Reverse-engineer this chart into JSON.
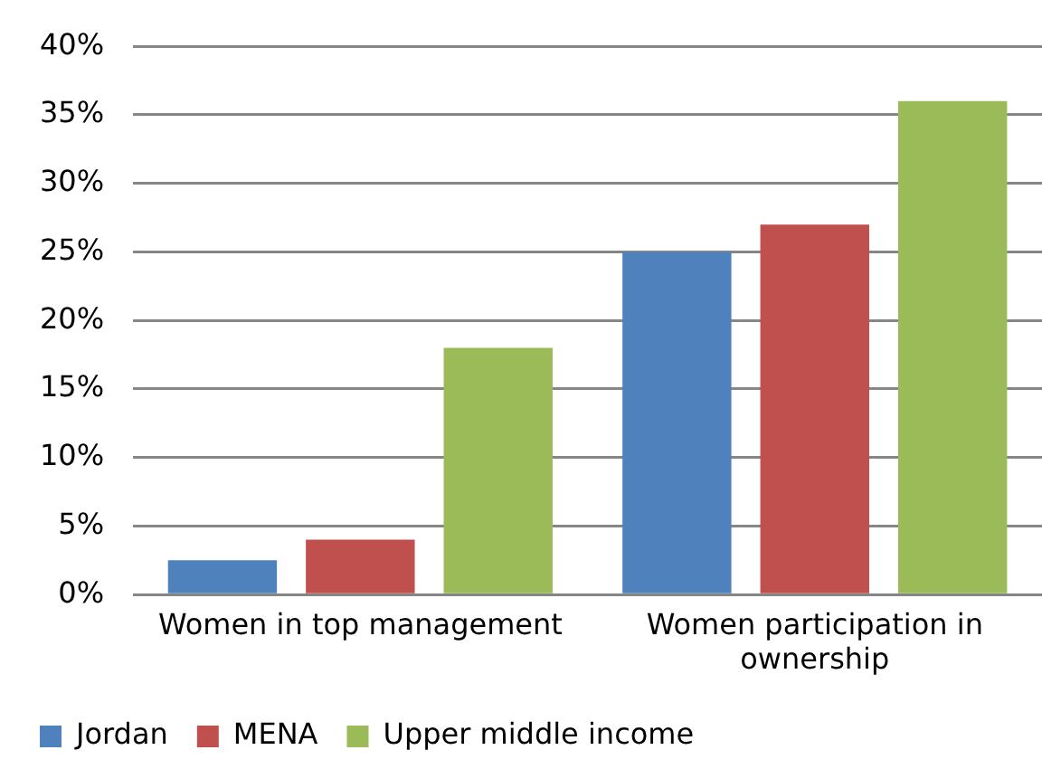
{
  "chart_data": {
    "type": "bar",
    "categories": [
      "Women in top management",
      "Women participation in ownership"
    ],
    "series": [
      {
        "name": "Jordan",
        "color": "#4f81bd",
        "values": [
          2.5,
          25
        ]
      },
      {
        "name": "MENA",
        "color": "#c0504d",
        "values": [
          4,
          27
        ]
      },
      {
        "name": "Upper middle income",
        "color": "#9bbb59",
        "values": [
          18,
          36
        ]
      }
    ],
    "ylim": [
      0,
      40
    ],
    "yticks": [
      {
        "value": 0,
        "label": "0%"
      },
      {
        "value": 5,
        "label": "5%"
      },
      {
        "value": 10,
        "label": "10%"
      },
      {
        "value": 15,
        "label": "15%"
      },
      {
        "value": 20,
        "label": "20%"
      },
      {
        "value": 25,
        "label": "25%"
      },
      {
        "value": 30,
        "label": "30%"
      },
      {
        "value": 35,
        "label": "35%"
      },
      {
        "value": 40,
        "label": "40%"
      }
    ],
    "grid": "y",
    "legend": "bottom left"
  }
}
